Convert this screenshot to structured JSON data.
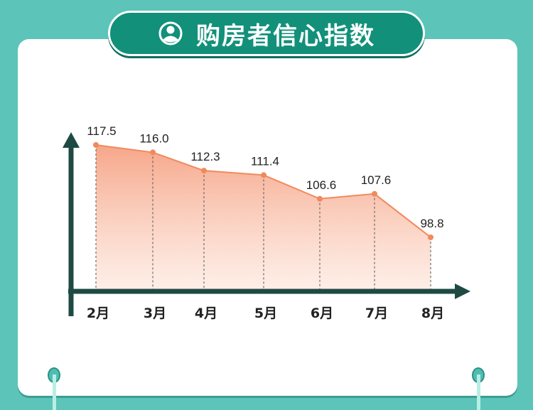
{
  "header": {
    "title": "购房者信心指数",
    "icon": "user-circle-icon"
  },
  "colors": {
    "background": "#5cc4b8",
    "title_pill": "#12907a",
    "line": "#f08a5d",
    "axis": "#1f4a44"
  },
  "chart_data": {
    "type": "area",
    "title": "购房者信心指数",
    "categories": [
      "2月",
      "3月",
      "4月",
      "5月",
      "6月",
      "7月",
      "8月"
    ],
    "values": [
      117.5,
      116.0,
      112.3,
      111.4,
      106.6,
      107.6,
      98.8
    ],
    "data_labels": [
      "117.5",
      "116.0",
      "112.3",
      "111.4",
      "106.6",
      "107.6",
      "98.8"
    ],
    "grid": false,
    "legend": "none"
  }
}
